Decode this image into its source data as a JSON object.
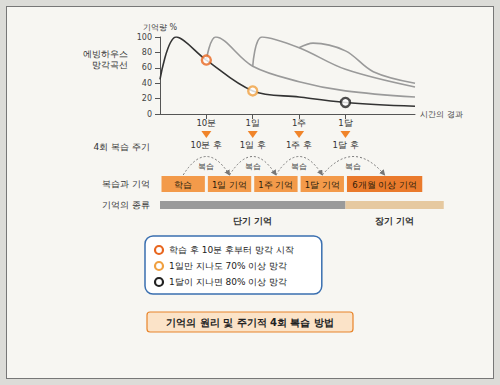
{
  "chart_data": {
    "type": "line",
    "y_label": "기억량 %",
    "x_label": "시간의 경과",
    "curve_label": "에빙하우스 망각곡선",
    "xlim": [
      0,
      5.5
    ],
    "xticks": [
      {
        "value": 1,
        "label": "10분"
      },
      {
        "value": 2,
        "label": "1일"
      },
      {
        "value": 3,
        "label": "1주"
      },
      {
        "value": 4,
        "label": "1달"
      }
    ],
    "ylim": [
      0,
      100
    ],
    "yticks": [
      0,
      20,
      40,
      60,
      80,
      100
    ],
    "grid": false,
    "series": [
      {
        "color": "#333333",
        "x": [
          0,
          0.35,
          1,
          2,
          3,
          4,
          5.5
        ],
        "values": [
          45,
          100,
          70,
          30,
          22,
          15,
          10
        ]
      },
      {
        "color": "#9a9a9a",
        "x": [
          1,
          1.2,
          2,
          3,
          4,
          5.5
        ],
        "values": [
          70,
          100,
          62,
          42,
          30,
          22
        ]
      },
      {
        "color": "#9a9a9a",
        "x": [
          2,
          2.2,
          3,
          4,
          5.5
        ],
        "values": [
          62,
          100,
          86,
          58,
          35
        ]
      },
      {
        "color": "#9a9a9a",
        "x": [
          3,
          3.3,
          4,
          4.6,
          5.5
        ],
        "values": [
          86,
          92,
          82,
          55,
          40
        ]
      }
    ],
    "markers": [
      {
        "x": 1,
        "y": 70,
        "color": "#e8661f",
        "label": "학습 후 10분 후부터 망각 시작"
      },
      {
        "x": 2,
        "y": 30,
        "color": "#f0a040",
        "label": "1일만 지나도 70% 이상 망각"
      },
      {
        "x": 4,
        "y": 15,
        "color": "#222222",
        "label": "1달이 지나면 80% 이상 망각"
      }
    ]
  },
  "diagram": {
    "review_cycle": {
      "label": "4회 복습 주기",
      "steps": [
        "10분 후",
        "1일 후",
        "1주 후",
        "1달 후"
      ],
      "arc_label": "복습"
    },
    "review_memory": {
      "label": "복습과 기억",
      "boxes": [
        "학습",
        "1일 기억",
        "1주 기억",
        "1달 기억",
        "6개월 이상 기억"
      ]
    },
    "memory_types": {
      "label": "기억의 종류",
      "short": "단기 기억",
      "long": "장기 기억"
    },
    "caption": "기억의 원리 및 주기적 4회 복습 방법"
  }
}
